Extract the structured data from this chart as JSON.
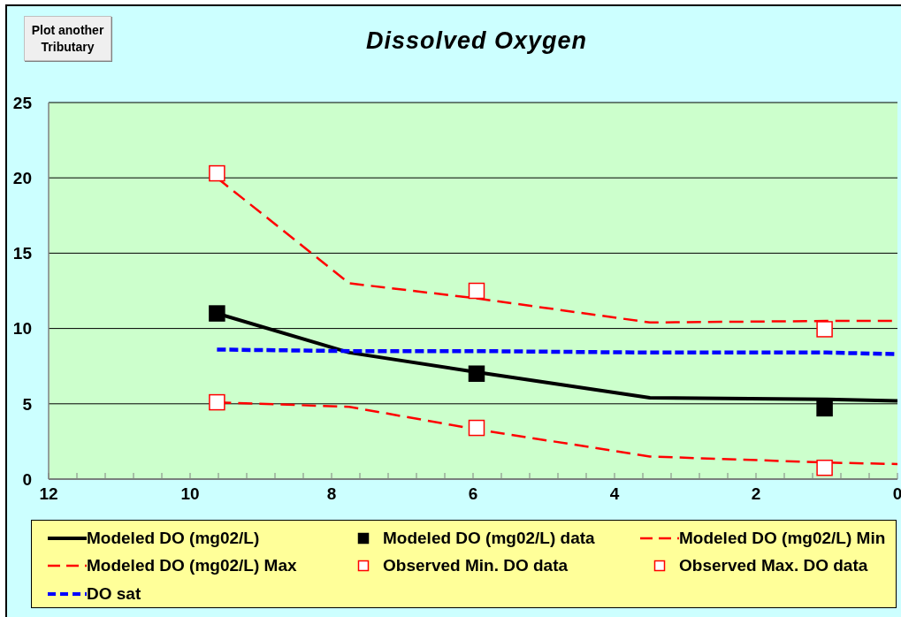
{
  "chart_data": {
    "type": "line",
    "title": "Dissolved Oxygen",
    "annotations": [
      "Plot another Tributary"
    ],
    "xlim": [
      12,
      0
    ],
    "xticks": [
      0,
      {
        "value": 0.4,
        "label": null
      },
      {
        "value": 0.8,
        "label": null
      },
      {
        "value": 1.2,
        "label": null
      },
      {
        "value": 1.6,
        "label": null
      },
      2,
      {
        "value": 2.4,
        "label": null
      },
      {
        "value": 2.8,
        "label": null
      },
      {
        "value": 3.2,
        "label": null
      },
      {
        "value": 3.6,
        "label": null
      },
      4,
      {
        "value": 4.4,
        "label": null
      },
      {
        "value": 4.8,
        "label": null
      },
      {
        "value": 5.2,
        "label": null
      },
      {
        "value": 5.6,
        "label": null
      },
      6,
      {
        "value": 6.4,
        "label": null
      },
      {
        "value": 6.8,
        "label": null
      },
      {
        "value": 7.2,
        "label": null
      },
      {
        "value": 7.6,
        "label": null
      },
      8,
      {
        "value": 8.4,
        "label": null
      },
      {
        "value": 8.8,
        "label": null
      },
      {
        "value": 9.2,
        "label": null
      },
      {
        "value": 9.6,
        "label": null
      },
      10,
      {
        "value": 10.4,
        "label": null
      },
      {
        "value": 10.8,
        "label": null
      },
      {
        "value": 11.2,
        "label": null
      },
      {
        "value": 11.6,
        "label": null
      },
      12
    ],
    "ylim": [
      0,
      25
    ],
    "yticks": [
      0,
      5,
      10,
      15,
      20,
      25
    ],
    "grid": "y",
    "legend": "bottom",
    "series": [
      {
        "name": "Modeled DO (mg02/L)",
        "color": "#000000",
        "x": [
          9.62,
          7.75,
          5.95,
          3.5,
          1.0,
          0
        ],
        "values": [
          11.0,
          8.4,
          7.1,
          5.4,
          5.3,
          5.2
        ],
        "line_style": "solid",
        "marker": "none"
      },
      {
        "name": "Modeled DO (mg02/L) data",
        "type": "scatter",
        "color": "#000000",
        "x": [
          9.62,
          5.95,
          1.03
        ],
        "values": [
          11.0,
          7.0,
          4.7
        ],
        "marker": "square"
      },
      {
        "name": "Modeled DO (mg02/L) Min",
        "color": "#ff0000",
        "x": [
          9.62,
          7.75,
          5.95,
          3.5,
          1.0,
          0
        ],
        "values": [
          5.1,
          4.8,
          3.3,
          1.5,
          1.1,
          1.0
        ],
        "line_style": "dashed",
        "marker": "none"
      },
      {
        "name": "Modeled DO (mg02/L) Max",
        "color": "#ff0000",
        "x": [
          9.62,
          7.75,
          5.95,
          3.5,
          1.0,
          0
        ],
        "values": [
          20.0,
          13.0,
          12.0,
          10.4,
          10.5,
          10.5
        ],
        "line_style": "dashed",
        "marker": "none"
      },
      {
        "name": "Observed Min. DO data",
        "type": "scatter",
        "color": "#ff0000",
        "x": [
          9.62,
          5.95,
          1.03
        ],
        "values": [
          5.1,
          3.4,
          0.75
        ],
        "marker": "square"
      },
      {
        "name": "Observed Max. DO data",
        "type": "scatter",
        "color": "#ff0000",
        "x": [
          9.62,
          5.95,
          1.03
        ],
        "values": [
          20.3,
          12.5,
          9.95
        ],
        "marker": "square"
      },
      {
        "name": "DO sat",
        "color": "#0000ff",
        "x": [
          9.62,
          7.75,
          5.95,
          3.5,
          1.0,
          0
        ],
        "values": [
          8.6,
          8.5,
          8.5,
          8.4,
          8.4,
          8.3
        ],
        "line_style": "dashed",
        "marker": "none"
      }
    ]
  }
}
